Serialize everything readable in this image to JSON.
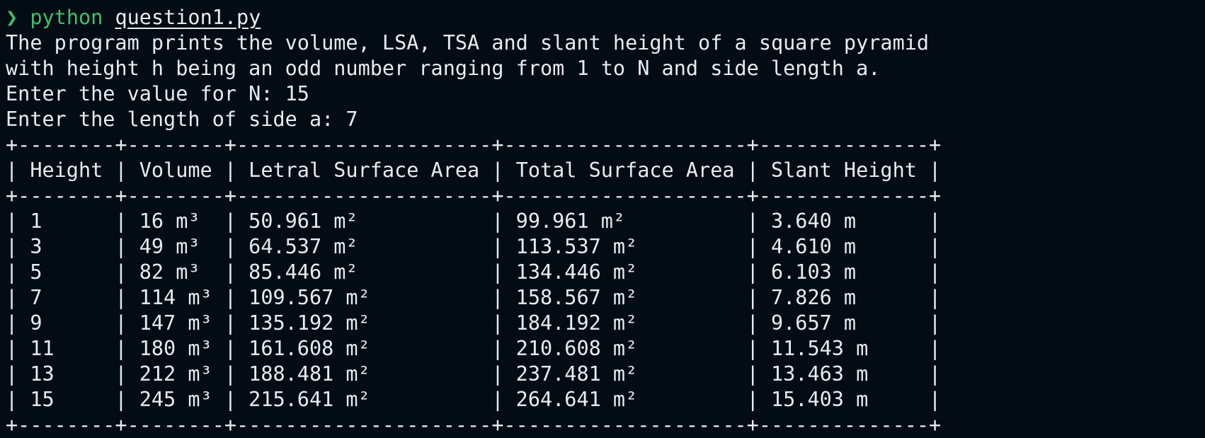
{
  "prompt": {
    "arrow": "❯",
    "command": "python",
    "argument": "question1.py"
  },
  "output": {
    "intro_line_1": "The program prints the volume, LSA, TSA and slant height of a square pyramid",
    "intro_line_2": "with height h being an odd number ranging from 1 to N and side length a.",
    "input_n": "Enter the value for N: 15",
    "input_a": "Enter the length of side a: 7"
  },
  "table": {
    "columns": [
      "Height",
      "Volume",
      "Letral Surface Area",
      "Total Surface Area",
      "Slant Height"
    ],
    "rows": [
      [
        "1",
        "16 m³",
        "50.961 m²",
        "99.961 m²",
        "3.640 m"
      ],
      [
        "3",
        "49 m³",
        "64.537 m²",
        "113.537 m²",
        "4.610 m"
      ],
      [
        "5",
        "82 m³",
        "85.446 m²",
        "134.446 m²",
        "6.103 m"
      ],
      [
        "7",
        "114 m³",
        "109.567 m²",
        "158.567 m²",
        "7.826 m"
      ],
      [
        "9",
        "147 m³",
        "135.192 m²",
        "184.192 m²",
        "9.657 m"
      ],
      [
        "11",
        "180 m³",
        "161.608 m²",
        "210.608 m²",
        "11.543 m"
      ],
      [
        "13",
        "212 m³",
        "188.481 m²",
        "237.481 m²",
        "13.463 m"
      ],
      [
        "15",
        "245 m³",
        "215.641 m²",
        "264.641 m²",
        "15.403 m"
      ]
    ]
  },
  "colors": {
    "background": "#030b14",
    "prompt": "#3fc06a",
    "text": "#e8ecf0"
  }
}
